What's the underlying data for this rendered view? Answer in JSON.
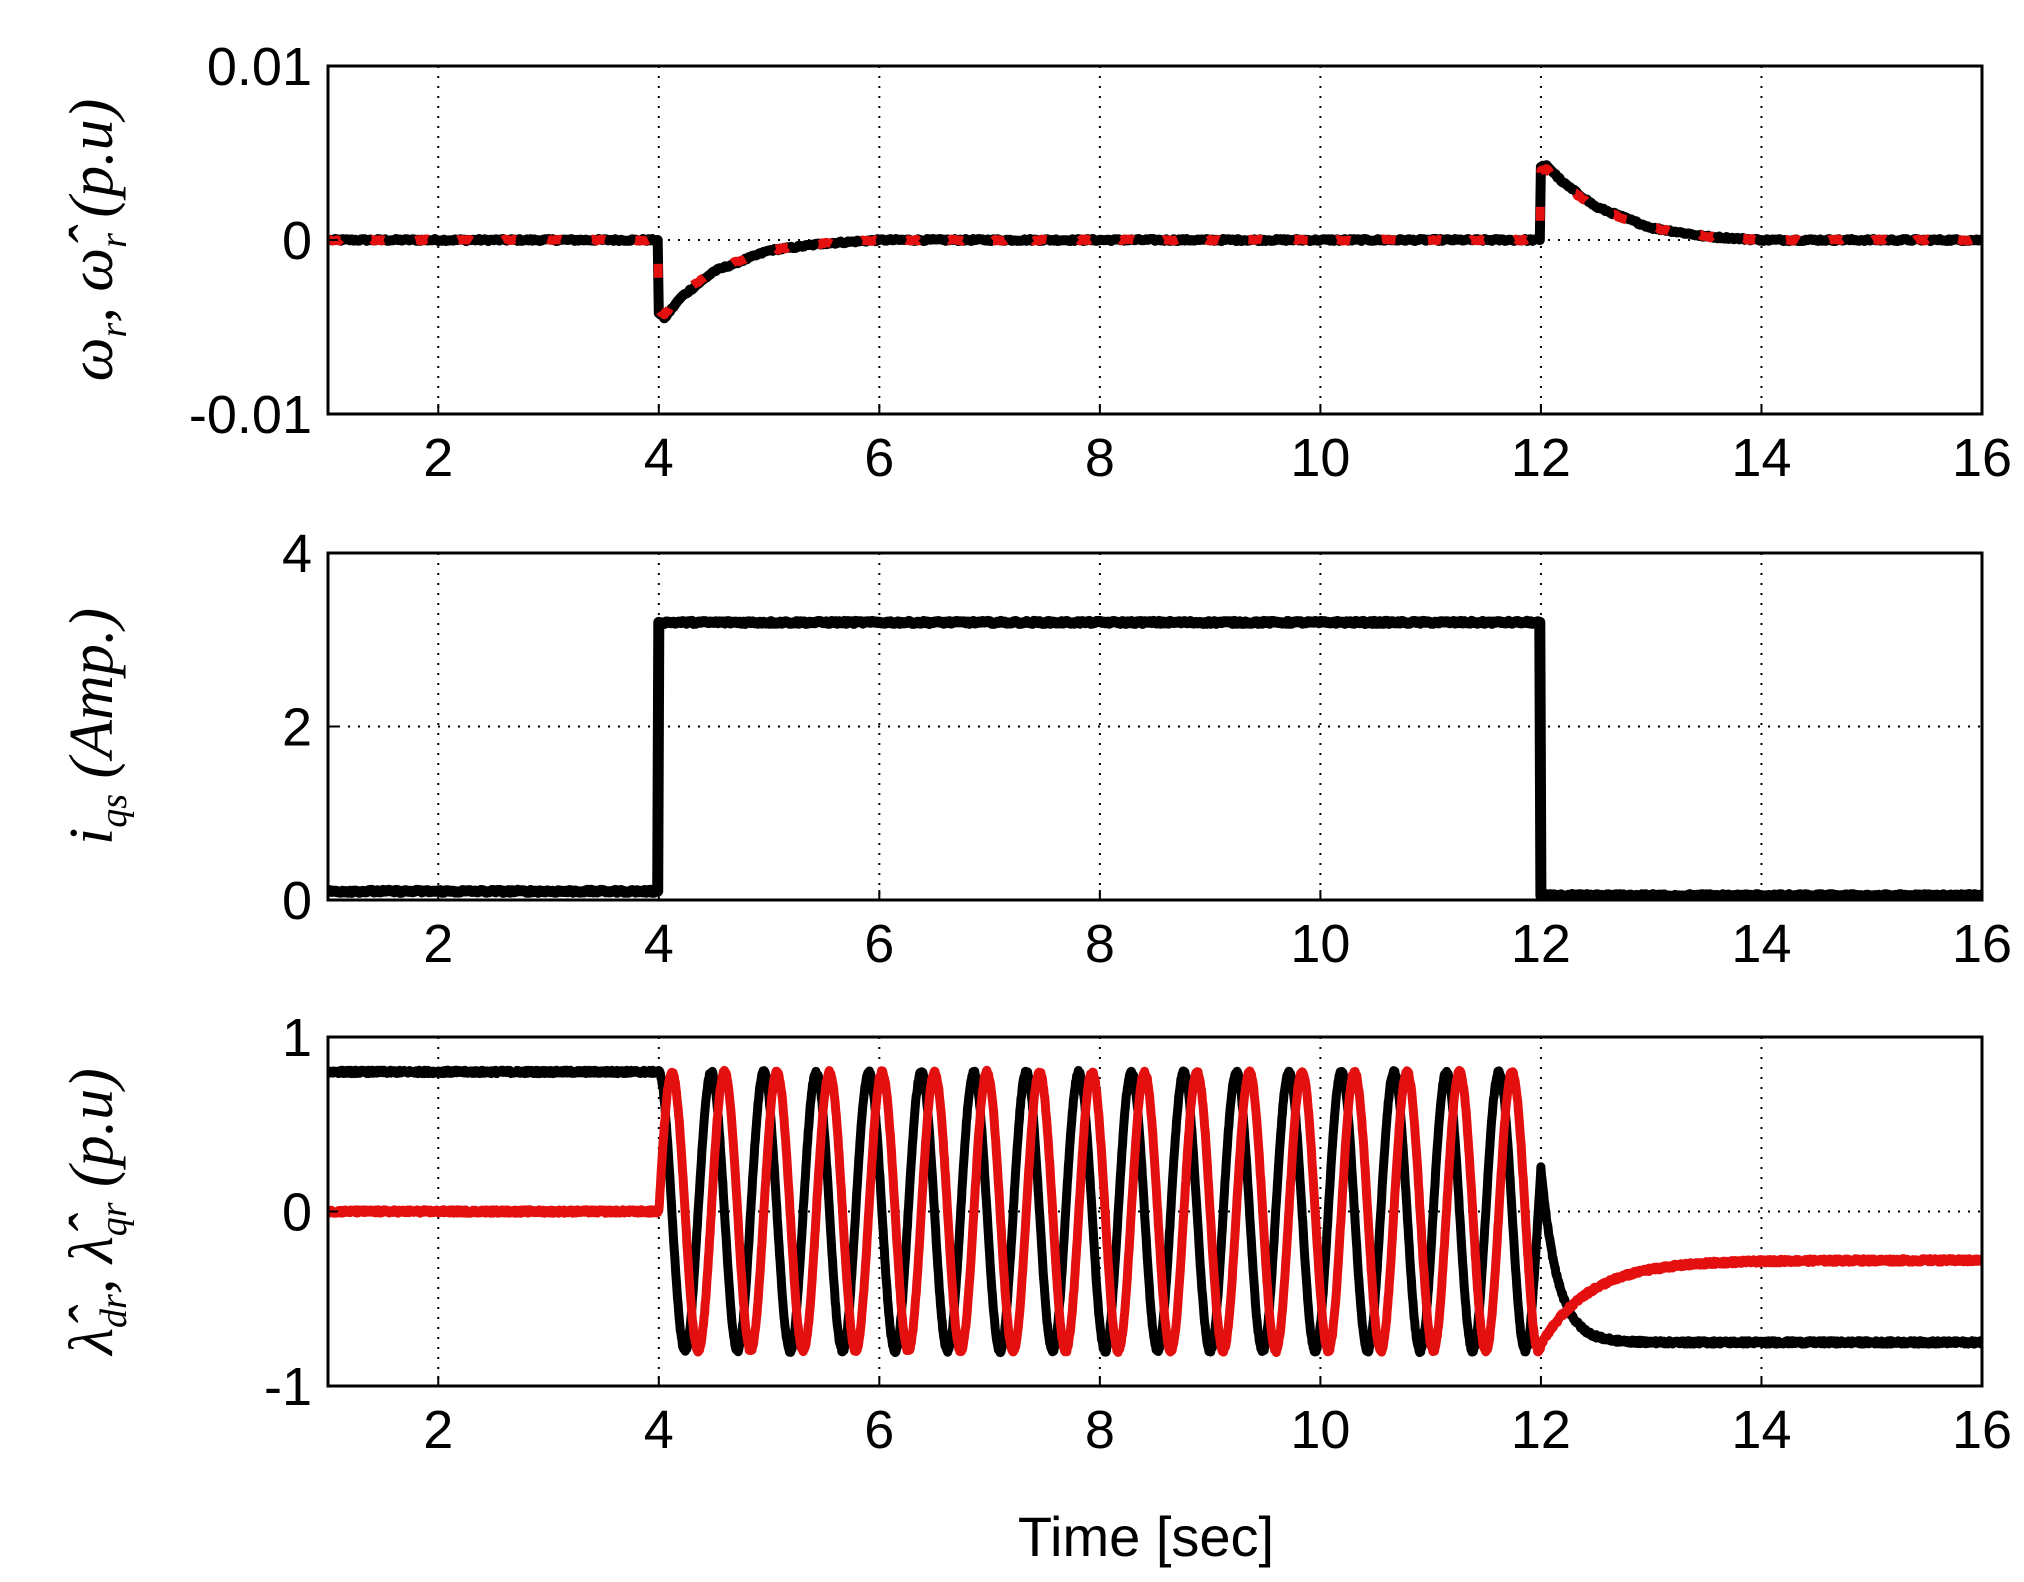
{
  "figure": {
    "xlabel": "Time [sec]"
  },
  "chart_data": [
    {
      "type": "line",
      "ylabel": "ω_r, ω̂_r (p.u)",
      "ylabel_parts": {
        "a": "ω",
        "a_sub": "r",
        "sep": ", ",
        "b": "ω̂",
        "b_sub": "r",
        "unit": "(p.u)"
      },
      "xlim": [
        1,
        16
      ],
      "ylim": [
        -0.01,
        0.01
      ],
      "xticks": [
        2,
        4,
        6,
        8,
        10,
        12,
        14,
        16
      ],
      "yticks": [
        -0.01,
        0,
        0.01
      ],
      "ytick_labels": [
        "-0.01",
        "0",
        "0.01"
      ],
      "grid": true,
      "series": [
        {
          "color": "#000000",
          "style": "solid",
          "x": [
            1,
            3.99,
            4.0,
            4.05,
            4.2,
            4.5,
            5.0,
            5.5,
            6.0,
            11.99,
            12.0,
            12.05,
            12.2,
            12.5,
            13.0,
            13.5,
            14.0,
            16
          ],
          "y": [
            0,
            0,
            -0.0042,
            -0.0045,
            -0.0033,
            -0.0018,
            -0.0006,
            -0.0002,
            0,
            0,
            0.0042,
            0.0043,
            0.0033,
            0.0019,
            0.0007,
            0.0002,
            0,
            0
          ]
        },
        {
          "color": "#e41010",
          "style": "dashed",
          "x": [
            1,
            3.99,
            4.0,
            4.05,
            4.2,
            4.5,
            5.0,
            5.5,
            6.0,
            11.99,
            12.0,
            12.05,
            12.2,
            12.5,
            13.0,
            13.5,
            14.0,
            16
          ],
          "y": [
            0,
            0,
            -0.004,
            -0.0043,
            -0.0032,
            -0.0017,
            -0.0006,
            -0.0002,
            0,
            0,
            0.004,
            0.0041,
            0.0032,
            0.0018,
            0.0007,
            0.0002,
            0,
            0
          ]
        }
      ]
    },
    {
      "type": "line",
      "ylabel": "i_qs (Amp.)",
      "ylabel_parts": {
        "a": "i",
        "a_sub": "qs",
        "sep": "",
        "b": "",
        "b_sub": "",
        "unit": "(Amp.)"
      },
      "xlim": [
        1,
        16
      ],
      "ylim": [
        0,
        4
      ],
      "xticks": [
        2,
        4,
        6,
        8,
        10,
        12,
        14,
        16
      ],
      "yticks": [
        0,
        2,
        4
      ],
      "ytick_labels": [
        "0",
        "2",
        "4"
      ],
      "grid": true,
      "series": [
        {
          "color": "#000000",
          "style": "solid",
          "x": [
            1,
            3.99,
            4.0,
            11.99,
            12.0,
            16
          ],
          "y": [
            0.1,
            0.1,
            3.2,
            3.2,
            0.05,
            0.05
          ]
        }
      ]
    },
    {
      "type": "line",
      "ylabel": "λ̂_dr, λ̂_qr (p.u)",
      "ylabel_parts": {
        "a": "λ̂",
        "a_sub": "dr",
        "sep": ", ",
        "b": "λ̂",
        "b_sub": "qr",
        "unit": "(p.u)"
      },
      "xlim": [
        1,
        16
      ],
      "ylim": [
        -1,
        1
      ],
      "xticks": [
        2,
        4,
        6,
        8,
        10,
        12,
        14,
        16
      ],
      "yticks": [
        -1,
        0,
        1
      ],
      "ytick_labels": [
        "-1",
        "0",
        "1"
      ],
      "grid": true,
      "oscillation": {
        "start": 4.0,
        "end": 12.0,
        "amplitude": 0.8,
        "frequency_hz": 2.1
      },
      "series": [
        {
          "name": "",
          "color": "#000000",
          "style": "solid",
          "component": "d",
          "initial": 0.8,
          "final": -0.75,
          "decay_tau": 0.15
        },
        {
          "name": "",
          "color": "#e41010",
          "style": "solid",
          "component": "q",
          "initial": 0.0,
          "final": -0.28,
          "decay_tau": 0.45
        }
      ]
    }
  ]
}
